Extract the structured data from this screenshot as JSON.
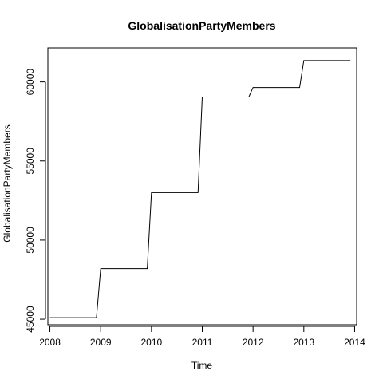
{
  "chart_data": {
    "type": "line",
    "title": "GlobalisationPartyMembers",
    "xlabel": "Time",
    "ylabel": "GlobalisationPartyMembers",
    "xlim": [
      2007.96,
      2014.04
    ],
    "ylim": [
      44650,
      62150
    ],
    "grid": false,
    "legend": "none",
    "x_ticks": [
      2008,
      2009,
      2010,
      2011,
      2012,
      2013,
      2014
    ],
    "x_tick_labels": [
      "2008",
      "2009",
      "2010",
      "2011",
      "2012",
      "2013",
      "2014"
    ],
    "y_ticks": [
      45000,
      50000,
      55000,
      60000
    ],
    "y_tick_labels": [
      "45000",
      "50000",
      "55000",
      "60000"
    ],
    "series": [
      {
        "x": [
          2008.0,
          2008.917,
          2009.0,
          2009.917,
          2010.0,
          2010.917,
          2011.0,
          2011.917,
          2012.0,
          2012.917,
          2013.0,
          2013.917
        ],
        "values": [
          45100,
          45100,
          48200,
          48200,
          53000,
          53000,
          59050,
          59050,
          59650,
          59650,
          61350,
          61350
        ]
      }
    ]
  }
}
